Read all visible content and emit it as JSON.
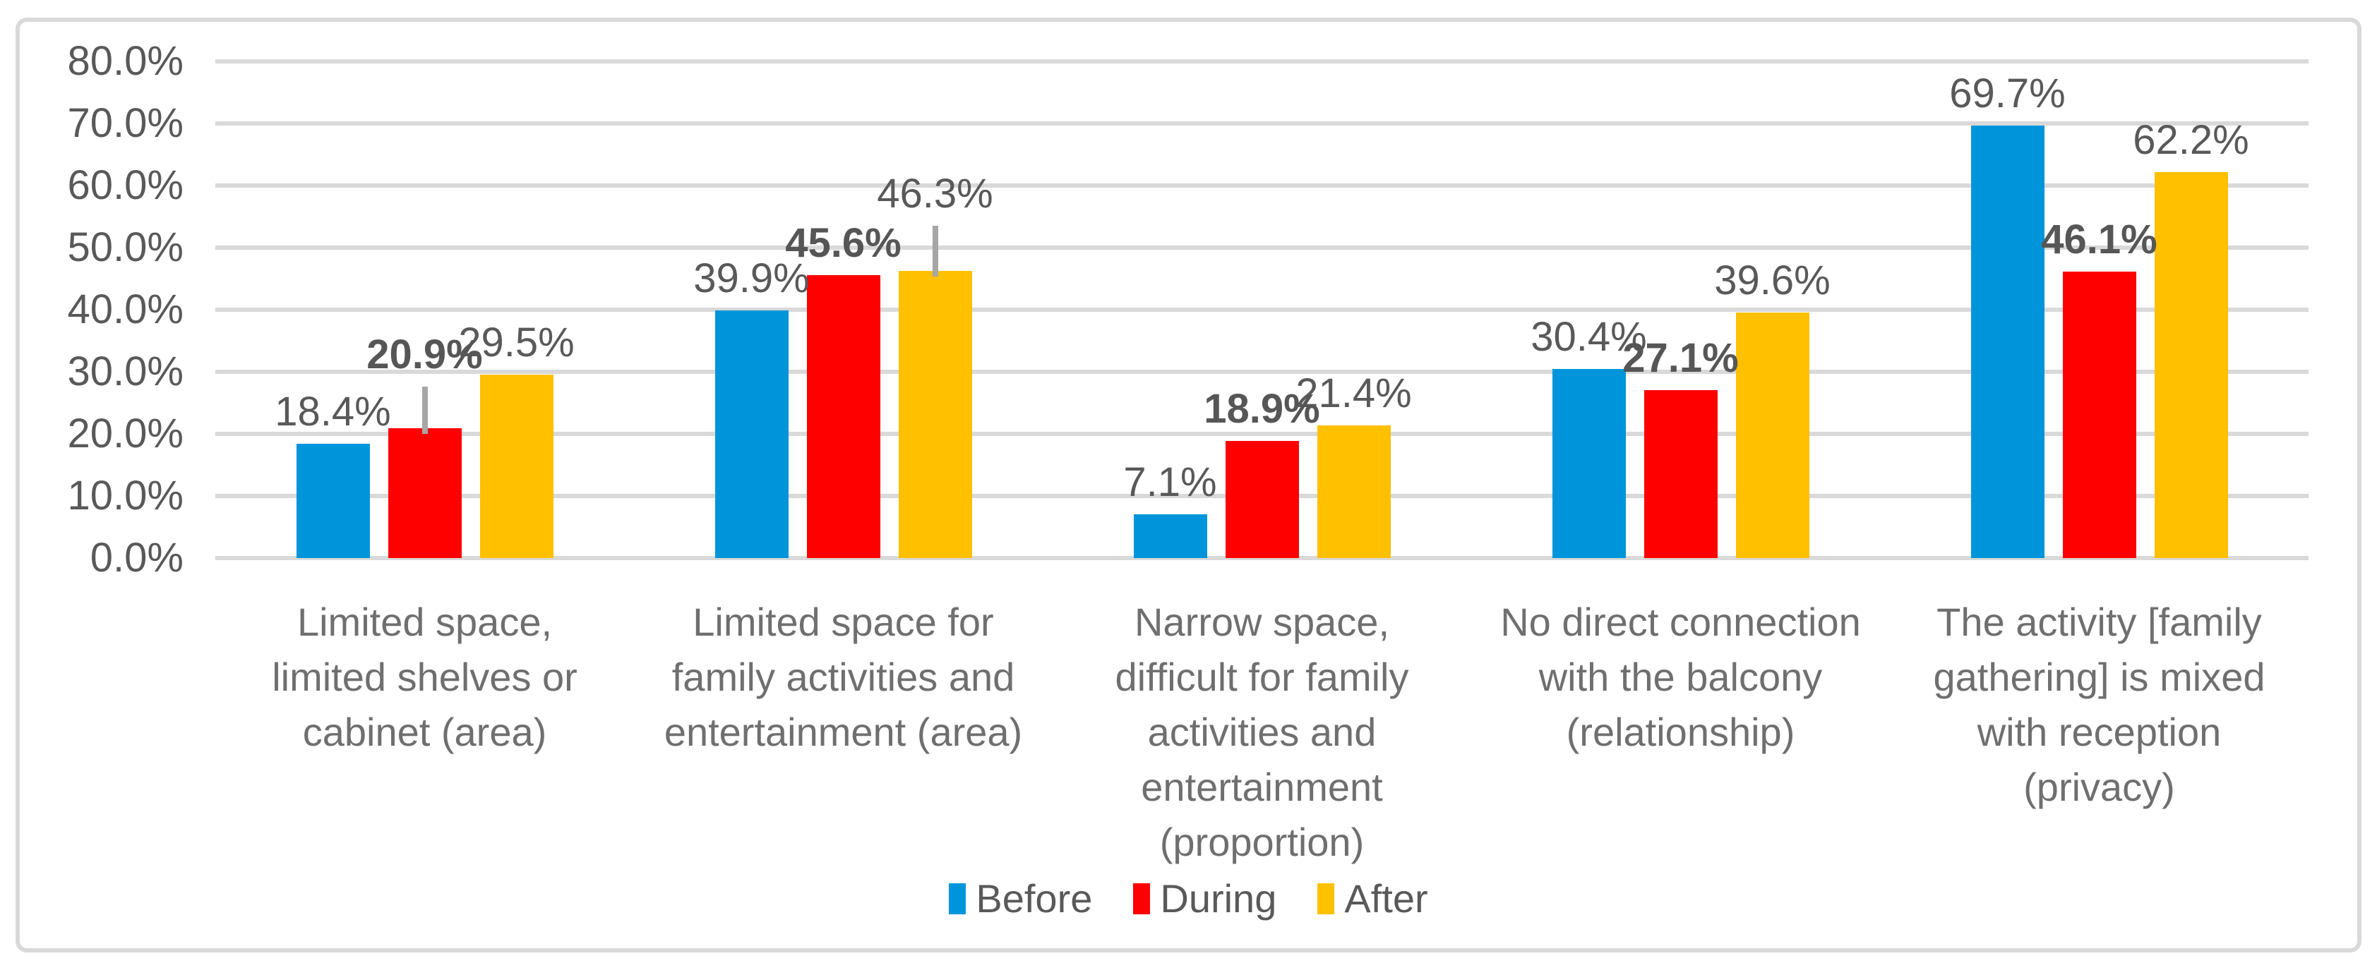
{
  "chart_data": {
    "type": "bar",
    "title": "",
    "xlabel": "",
    "ylabel": "",
    "categories": [
      "Limited space,\nlimited shelves or\ncabinet (area)",
      "Limited space for\nfamily activities and\nentertainment (area)",
      "Narrow space,\ndifficult for family\nactivities and\nentertainment\n(proportion)",
      "No direct connection\nwith the balcony\n(relationship)",
      "The activity [family\ngathering] is mixed\nwith reception\n(privacy)"
    ],
    "series": [
      {
        "name": "Before",
        "color": "#0095DB",
        "values": [
          18.4,
          39.9,
          7.1,
          30.4,
          69.7
        ],
        "bold_labels": false
      },
      {
        "name": "During",
        "color": "#FF0000",
        "values": [
          20.9,
          45.6,
          18.9,
          27.1,
          46.1
        ],
        "bold_labels": true
      },
      {
        "name": "After",
        "color": "#FFC000",
        "values": [
          29.5,
          46.3,
          21.4,
          39.6,
          62.2
        ],
        "bold_labels": false
      }
    ],
    "data_label_format": "percent_1dp",
    "error_bars": [
      {
        "category_index": 0,
        "series": "During",
        "top_value": 27.6
      },
      {
        "category_index": 1,
        "series": "After",
        "top_value": 53.5
      }
    ],
    "y_axis": {
      "min": 0,
      "max": 80,
      "step": 10,
      "tick_labels": [
        "0.0%",
        "10.0%",
        "20.0%",
        "30.0%",
        "40.0%",
        "50.0%",
        "60.0%",
        "70.0%",
        "80.0%"
      ]
    },
    "legend": {
      "position": "bottom",
      "entries": [
        "Before",
        "During",
        "After"
      ]
    },
    "grid": true,
    "colors": {
      "gridline": "#D9D9D9",
      "chart_border": "#D9D9D9",
      "axis_text": "#595959",
      "category_text": "#6f6f6f",
      "error_bar": "#A6A6A6",
      "background": "#FFFFFF"
    }
  }
}
